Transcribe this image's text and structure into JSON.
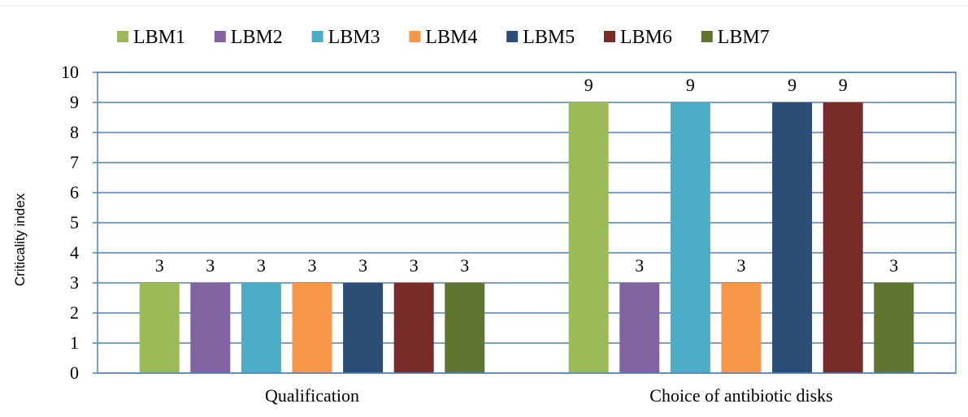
{
  "chart_data": {
    "type": "bar",
    "title": "",
    "xlabel": "",
    "ylabel": "Criticality index",
    "ylim": [
      0,
      10
    ],
    "y_ticks": [
      0,
      1,
      2,
      3,
      4,
      5,
      6,
      7,
      8,
      9,
      10
    ],
    "grid": true,
    "legend_position": "top",
    "categories": [
      "Qualification",
      "Choice of antibiotic disks"
    ],
    "series": [
      {
        "name": "LBM1",
        "color": "#9BBB59",
        "values": [
          3,
          9
        ]
      },
      {
        "name": "LBM2",
        "color": "#8064A2",
        "values": [
          3,
          3
        ]
      },
      {
        "name": "LBM3",
        "color": "#4BACC6",
        "values": [
          3,
          9
        ]
      },
      {
        "name": "LBM4",
        "color": "#F79646",
        "values": [
          3,
          3
        ]
      },
      {
        "name": "LBM5",
        "color": "#2C4D75",
        "values": [
          3,
          9
        ]
      },
      {
        "name": "LBM6",
        "color": "#772C2A",
        "values": [
          3,
          9
        ]
      },
      {
        "name": "LBM7",
        "color": "#5F7530",
        "values": [
          3,
          3
        ]
      }
    ],
    "gridline_color": "#4F81BD"
  }
}
